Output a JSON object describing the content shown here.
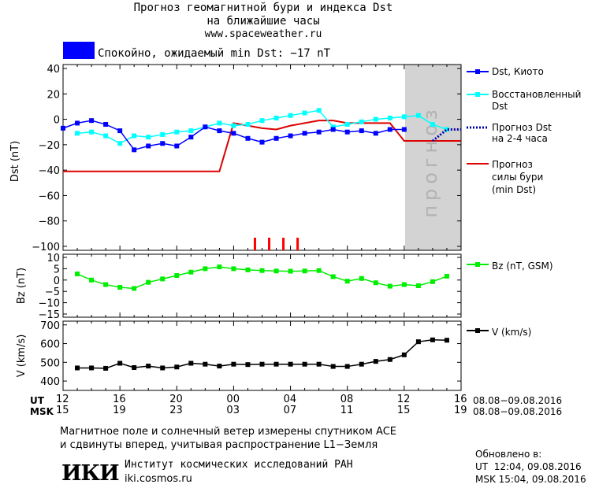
{
  "header": {
    "title_line1": "Прогноз геомагнитной бури и индекса Dst",
    "title_line2": "на ближайшие часы",
    "site": "www.spaceweather.ru"
  },
  "status": {
    "text": "Спокойно, ожидаемый min Dst: −17 nT",
    "color": "#0000ff"
  },
  "forecast_label": "прогноз",
  "legend": {
    "dst_kyoto": "Dst, Киото",
    "restored_l1": "Восстановленный",
    "restored_l2": "Dst",
    "forecast_dst_l1": "Прогноз Dst",
    "forecast_dst_l2": "на 2-4 часа",
    "storm_l1": "Прогноз",
    "storm_l2": "силы бури",
    "storm_l3": "(min Dst)",
    "bz": "Bz (nT, GSM)",
    "v": "V (km/s)"
  },
  "time_axis": {
    "ut_label": "UT",
    "msk_label": "MSK",
    "ut_ticks": [
      "12",
      "16",
      "20",
      "00",
      "04",
      "08",
      "12",
      "16"
    ],
    "msk_ticks": [
      "15",
      "19",
      "23",
      "03",
      "07",
      "11",
      "15",
      "19"
    ],
    "ut_range": "08.08−09.08.2016",
    "msk_range": "08.08−09.08.2016"
  },
  "footer": {
    "note_l1": "Магнитное поле и солнечный ветер измерены спутником ACE",
    "note_l2": "и сдвинуты вперед, учитывая распространение L1−Земля",
    "logo": "ИКИ",
    "institute": "Институт космических исследований РАН",
    "institute_site": "iki.cosmos.ru",
    "updated_title": "Обновлено в:",
    "updated_ut": "UT  12:04, 09.08.2016",
    "updated_msk": "MSK 15:04, 09.08.2016"
  },
  "chart_data": [
    {
      "type": "line",
      "ylabel": "Dst (nT)",
      "ylim": [
        -100,
        40
      ],
      "yticks": [
        "40",
        "20",
        "0",
        "−20",
        "−40",
        "−60",
        "−80",
        "−100"
      ],
      "x_unit": "hours since 12 UT 08.08.2016",
      "xlim": [
        0,
        28
      ],
      "series": [
        {
          "name": "Dst, Киото",
          "color": "#0000ff",
          "marker": "square",
          "x": [
            0,
            1,
            2,
            3,
            4,
            5,
            6,
            7,
            8,
            9,
            10,
            11,
            12,
            13,
            14,
            15,
            16,
            17,
            18,
            19,
            20,
            21,
            22,
            23,
            24
          ],
          "y": [
            -7,
            -3,
            -1,
            -4,
            -9,
            -24,
            -21,
            -19,
            -21,
            -14,
            -6,
            -9,
            -11,
            -15,
            -18,
            -15,
            -13,
            -11,
            -10,
            -8,
            -10,
            -9,
            -11,
            -8,
            -8
          ]
        },
        {
          "name": "Восстановленный Dst",
          "color": "#00ffff",
          "marker": "square",
          "x": [
            1,
            2,
            3,
            4,
            5,
            6,
            7,
            8,
            9,
            10,
            11,
            12,
            13,
            14,
            15,
            16,
            17,
            18,
            19,
            20,
            21,
            22,
            23,
            24,
            25,
            26,
            27
          ],
          "y": [
            -11,
            -10,
            -13,
            -19,
            -13,
            -14,
            -12,
            -10,
            -9,
            -6,
            -3,
            -5,
            -4,
            -1,
            1,
            3,
            5,
            7,
            -6,
            -4,
            -2,
            0,
            1,
            2,
            3,
            -4,
            -8
          ]
        },
        {
          "name": "Прогноз Dst на 2-4 часа",
          "color": "#0000aa",
          "style": "dotted",
          "x": [
            26,
            27,
            28
          ],
          "y": [
            -17,
            -8,
            -8
          ]
        },
        {
          "name": "Прогноз силы бури (min Dst)",
          "color": "#dd0000",
          "style": "step",
          "x": [
            0,
            5,
            6,
            7,
            8,
            9,
            10,
            11,
            12,
            13,
            14,
            15,
            16,
            17,
            18,
            19,
            20,
            21,
            22,
            23,
            24,
            25,
            26,
            27,
            28
          ],
          "y": [
            -41,
            -41,
            -41,
            -41,
            -41,
            -41,
            -41,
            -41,
            -3,
            -5,
            -7,
            -8,
            -5,
            -3,
            -1,
            -1,
            -3,
            -3,
            -3,
            -3,
            -17,
            -17,
            -17,
            -17,
            -17
          ]
        }
      ],
      "forecast_region_x": [
        24,
        28
      ],
      "storm_markers_x": [
        13.5,
        14.5,
        15.5,
        16.5
      ]
    },
    {
      "type": "line",
      "ylabel": "Bz (nT)",
      "ylim": [
        -15,
        10
      ],
      "yticks": [
        "10",
        "5",
        "0",
        "−5",
        "−10",
        "−15"
      ],
      "series": [
        {
          "name": "Bz (nT, GSM)",
          "color": "#00ee00",
          "marker": "square",
          "x": [
            1,
            2,
            3,
            4,
            5,
            6,
            7,
            8,
            9,
            10,
            11,
            12,
            13,
            14,
            15,
            16,
            17,
            18,
            19,
            20,
            21,
            22,
            23,
            24,
            25,
            26,
            27
          ],
          "y": [
            2.7,
            0.0,
            -2.0,
            -3.2,
            -3.7,
            -1.0,
            0.5,
            2.0,
            3.5,
            5.0,
            5.8,
            5.0,
            4.5,
            4.2,
            4.0,
            3.9,
            4.0,
            4.2,
            1.5,
            -0.5,
            0.7,
            -1.2,
            -2.7,
            -2.0,
            -2.5,
            -0.7,
            1.7
          ]
        }
      ]
    },
    {
      "type": "line",
      "ylabel": "V (km/s)",
      "ylim": [
        350,
        700
      ],
      "yticks": [
        "700",
        "600",
        "500",
        "400"
      ],
      "series": [
        {
          "name": "V (km/s)",
          "color": "#000000",
          "marker": "square",
          "x": [
            1,
            2,
            3,
            4,
            5,
            6,
            7,
            8,
            9,
            10,
            11,
            12,
            13,
            14,
            15,
            16,
            17,
            18,
            19,
            20,
            21,
            22,
            23,
            24,
            25,
            26,
            27
          ],
          "y": [
            470,
            470,
            468,
            495,
            472,
            480,
            470,
            475,
            495,
            490,
            480,
            490,
            488,
            490,
            490,
            490,
            490,
            490,
            478,
            478,
            490,
            505,
            515,
            540,
            610,
            620,
            618
          ]
        }
      ]
    }
  ]
}
